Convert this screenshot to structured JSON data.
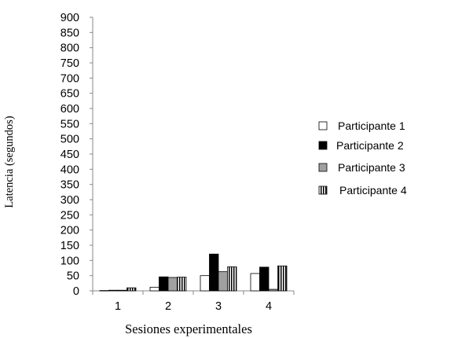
{
  "chart_data": {
    "type": "bar",
    "categories": [
      "1",
      "2",
      "3",
      "4"
    ],
    "series": [
      {
        "name": "Participante 1",
        "values": [
          1,
          12,
          50,
          57
        ],
        "fill": "white"
      },
      {
        "name": "Participante 2",
        "values": [
          2,
          46,
          121,
          78
        ],
        "fill": "black"
      },
      {
        "name": "Participante 3",
        "values": [
          2,
          44,
          63,
          5
        ],
        "fill": "gray"
      },
      {
        "name": "Participante 4",
        "values": [
          10,
          45,
          79,
          82
        ],
        "fill": "striped"
      }
    ],
    "xlabel": "Sesiones experimentales",
    "ylabel": "Latencia (segundos)",
    "ylim": [
      0,
      900
    ],
    "yticks": [
      0,
      50,
      100,
      150,
      200,
      250,
      300,
      350,
      400,
      450,
      500,
      550,
      600,
      650,
      700,
      750,
      800,
      850,
      900
    ],
    "grid": false,
    "legend_position": "right",
    "colors": {
      "gray": "#a0a0a0",
      "black": "#000000",
      "white": "#ffffff"
    }
  }
}
